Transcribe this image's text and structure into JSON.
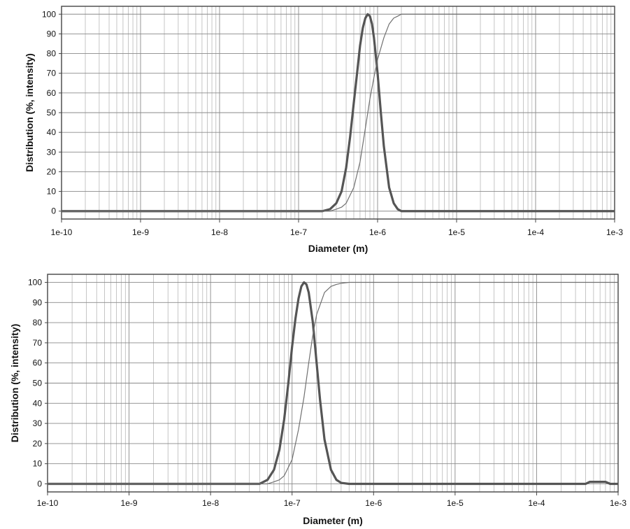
{
  "chart_data": [
    {
      "type": "line",
      "title": "",
      "xlabel": "Diameter (m)",
      "ylabel": "Distribution (%, intensity)",
      "x_scale": "log",
      "xlim": [
        1e-10,
        0.001
      ],
      "ylim": [
        -4,
        104
      ],
      "xticks": [
        1e-10,
        1e-09,
        1e-08,
        1e-07,
        1e-06,
        1e-05,
        0.0001,
        0.001
      ],
      "xtick_labels": [
        "1e-10",
        "1e-9",
        "1e-8",
        "1e-7",
        "1e-6",
        "1e-5",
        "1e-4",
        "1e-3"
      ],
      "yticks": [
        0,
        10,
        20,
        30,
        40,
        50,
        60,
        70,
        80,
        90,
        100
      ],
      "ytick_labels": [
        "0",
        "10",
        "20",
        "30",
        "40",
        "50",
        "60",
        "70",
        "80",
        "90",
        "100"
      ],
      "grid": true,
      "series": [
        {
          "style": "thick",
          "x": [
            1e-10,
            2e-07,
            2.5e-07,
            3e-07,
            3.5e-07,
            4e-07,
            4.5e-07,
            5e-07,
            5.5e-07,
            6e-07,
            6.5e-07,
            7e-07,
            7.5e-07,
            8e-07,
            8.5e-07,
            9e-07,
            1e-06,
            1.1e-06,
            1.2e-06,
            1.4e-06,
            1.6e-06,
            1.8e-06,
            2e-06,
            0.001
          ],
          "y": [
            0,
            0,
            1,
            4,
            10,
            22,
            38,
            55,
            70,
            84,
            93,
            98,
            100,
            99,
            95,
            88,
            70,
            50,
            33,
            12,
            4,
            1,
            0,
            0
          ]
        },
        {
          "style": "thin",
          "x": [
            1e-10,
            2.5e-07,
            3e-07,
            3.5e-07,
            4e-07,
            5e-07,
            6e-07,
            7e-07,
            8e-07,
            9e-07,
            1e-06,
            1.2e-06,
            1.4e-06,
            1.6e-06,
            1.8e-06,
            2e-06,
            0.001
          ],
          "y": [
            0,
            0,
            1,
            2,
            4,
            12,
            25,
            42,
            57,
            68,
            77,
            88,
            95,
            98,
            99,
            100,
            100
          ]
        }
      ]
    },
    {
      "type": "line",
      "title": "",
      "xlabel": "Diameter (m)",
      "ylabel": "Distribution (%, intensity)",
      "x_scale": "log",
      "xlim": [
        1e-10,
        0.001
      ],
      "ylim": [
        -4,
        104
      ],
      "xticks": [
        1e-10,
        1e-09,
        1e-08,
        1e-07,
        1e-06,
        1e-05,
        0.0001,
        0.001
      ],
      "xtick_labels": [
        "1e-10",
        "1e-9",
        "1e-8",
        "1e-7",
        "1e-6",
        "1e-5",
        "1e-4",
        "1e-3"
      ],
      "yticks": [
        0,
        10,
        20,
        30,
        40,
        50,
        60,
        70,
        80,
        90,
        100
      ],
      "ytick_labels": [
        "0",
        "10",
        "20",
        "30",
        "40",
        "50",
        "60",
        "70",
        "80",
        "90",
        "100"
      ],
      "grid": true,
      "series": [
        {
          "style": "thick",
          "x": [
            1e-10,
            4e-08,
            5e-08,
            6e-08,
            7e-08,
            8e-08,
            9e-08,
            1e-07,
            1.1e-07,
            1.2e-07,
            1.3e-07,
            1.4e-07,
            1.5e-07,
            1.6e-07,
            1.8e-07,
            2e-07,
            2.2e-07,
            2.5e-07,
            3e-07,
            3.5e-07,
            4e-07,
            5e-07,
            0.0004,
            0.00045,
            0.0005,
            0.0006,
            0.0007,
            0.0008,
            0.001
          ],
          "y": [
            0,
            0,
            2,
            7,
            17,
            32,
            50,
            68,
            82,
            92,
            98,
            100,
            99,
            95,
            80,
            60,
            42,
            22,
            7,
            2,
            0.5,
            0,
            0,
            1,
            1,
            1,
            1,
            0,
            0
          ]
        },
        {
          "style": "thin",
          "x": [
            1e-10,
            5e-08,
            6e-08,
            7e-08,
            8e-08,
            1e-07,
            1.2e-07,
            1.4e-07,
            1.6e-07,
            1.8e-07,
            2e-07,
            2.5e-07,
            3e-07,
            3.5e-07,
            4e-07,
            5e-07,
            0.0004,
            0.0005,
            0.001
          ],
          "y": [
            0,
            0,
            1,
            2,
            4,
            12,
            27,
            43,
            60,
            74,
            84,
            95,
            98,
            99,
            99.5,
            100,
            100,
            100,
            100
          ]
        }
      ]
    }
  ]
}
